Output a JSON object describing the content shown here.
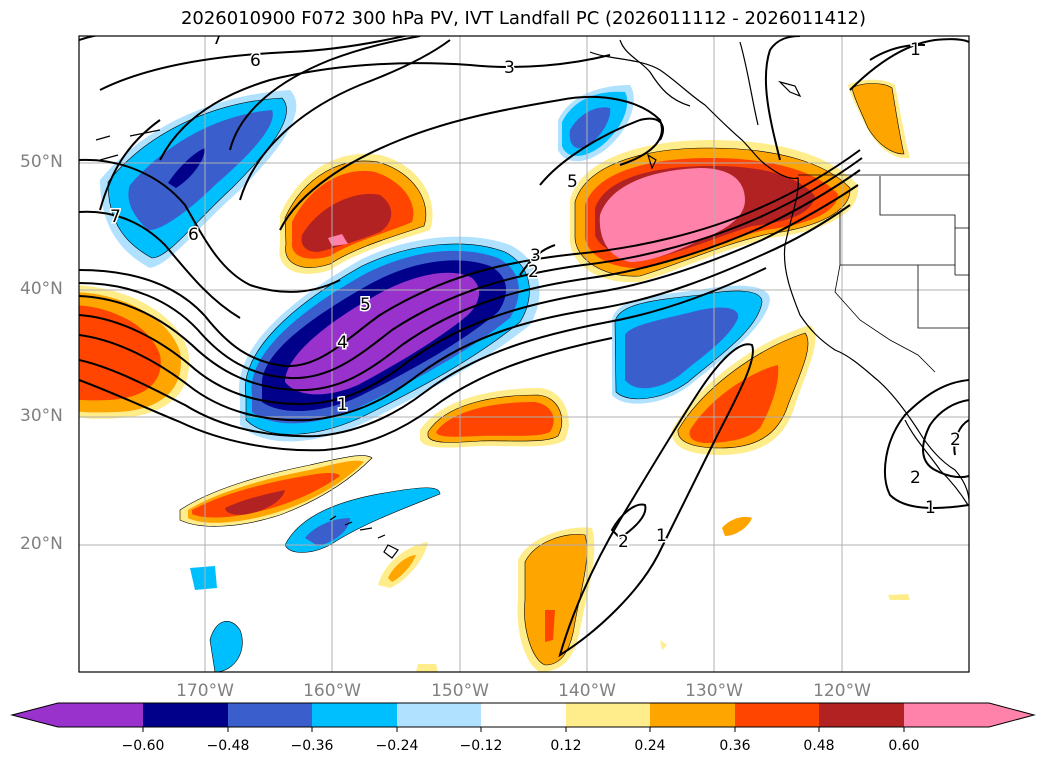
{
  "title": "2026010900 F072 300 hPa PV, IVT Landfall PC (2026011112 - 2026011412)",
  "latitude_labels": [
    "50°N",
    "40°N",
    "30°N",
    "20°N"
  ],
  "longitude_labels": [
    "170°W",
    "160°W",
    "150°W",
    "140°W",
    "130°W",
    "120°W"
  ],
  "colorbar": {
    "ticks": [
      "−0.60",
      "−0.48",
      "−0.36",
      "−0.24",
      "−0.12",
      "0.12",
      "0.24",
      "0.36",
      "0.48",
      "0.60"
    ],
    "colors": [
      "#9932cc",
      "#00008b",
      "#3a5fcd",
      "#00bfff",
      "#b0e2ff",
      "#ffffff",
      "#ffec8b",
      "#ffa500",
      "#ff4500",
      "#b22222",
      "#ff82ab"
    ]
  },
  "contour_labels": [
    "7",
    "6",
    "3",
    "1",
    "7",
    "6",
    "5",
    "3",
    "2",
    "5",
    "4",
    "1",
    "2",
    "1",
    "2",
    "2",
    "1"
  ]
}
